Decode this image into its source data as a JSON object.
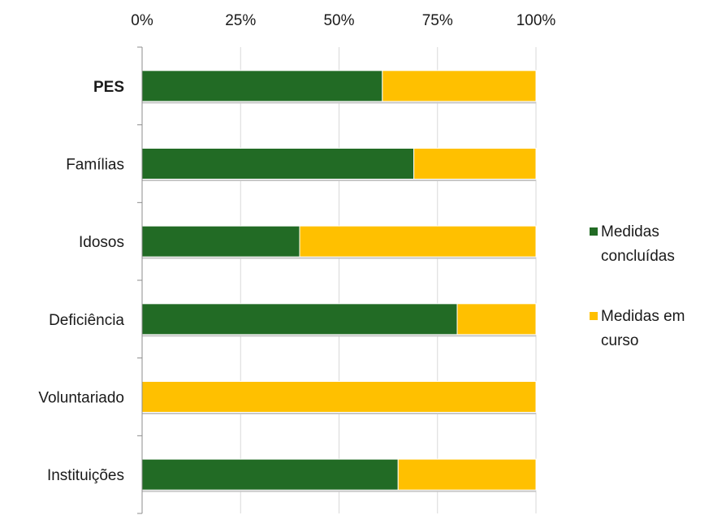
{
  "chart_data": {
    "type": "bar",
    "orientation": "horizontal",
    "stacked": true,
    "percent_stacked": true,
    "x_tick_labels": [
      "0%",
      "25%",
      "50%",
      "75%",
      "100%"
    ],
    "xlim": [
      0,
      100
    ],
    "x_position": "top",
    "categories": [
      "PES",
      "Famílias",
      "Idosos",
      "Deficiência",
      "Voluntariado",
      "Instituições"
    ],
    "bold_categories": [
      "PES"
    ],
    "series": [
      {
        "name": "Medidas concluídas",
        "name_lines": [
          "Medidas",
          "concluídas"
        ],
        "color": "#226B25",
        "values": [
          61,
          69,
          40,
          80,
          0,
          65
        ]
      },
      {
        "name": "Medidas em curso",
        "name_lines": [
          "Medidas em",
          "curso"
        ],
        "color": "#FFC000",
        "values": [
          39,
          31,
          60,
          20,
          100,
          35
        ]
      }
    ],
    "grid": true,
    "legend_position": "right"
  }
}
